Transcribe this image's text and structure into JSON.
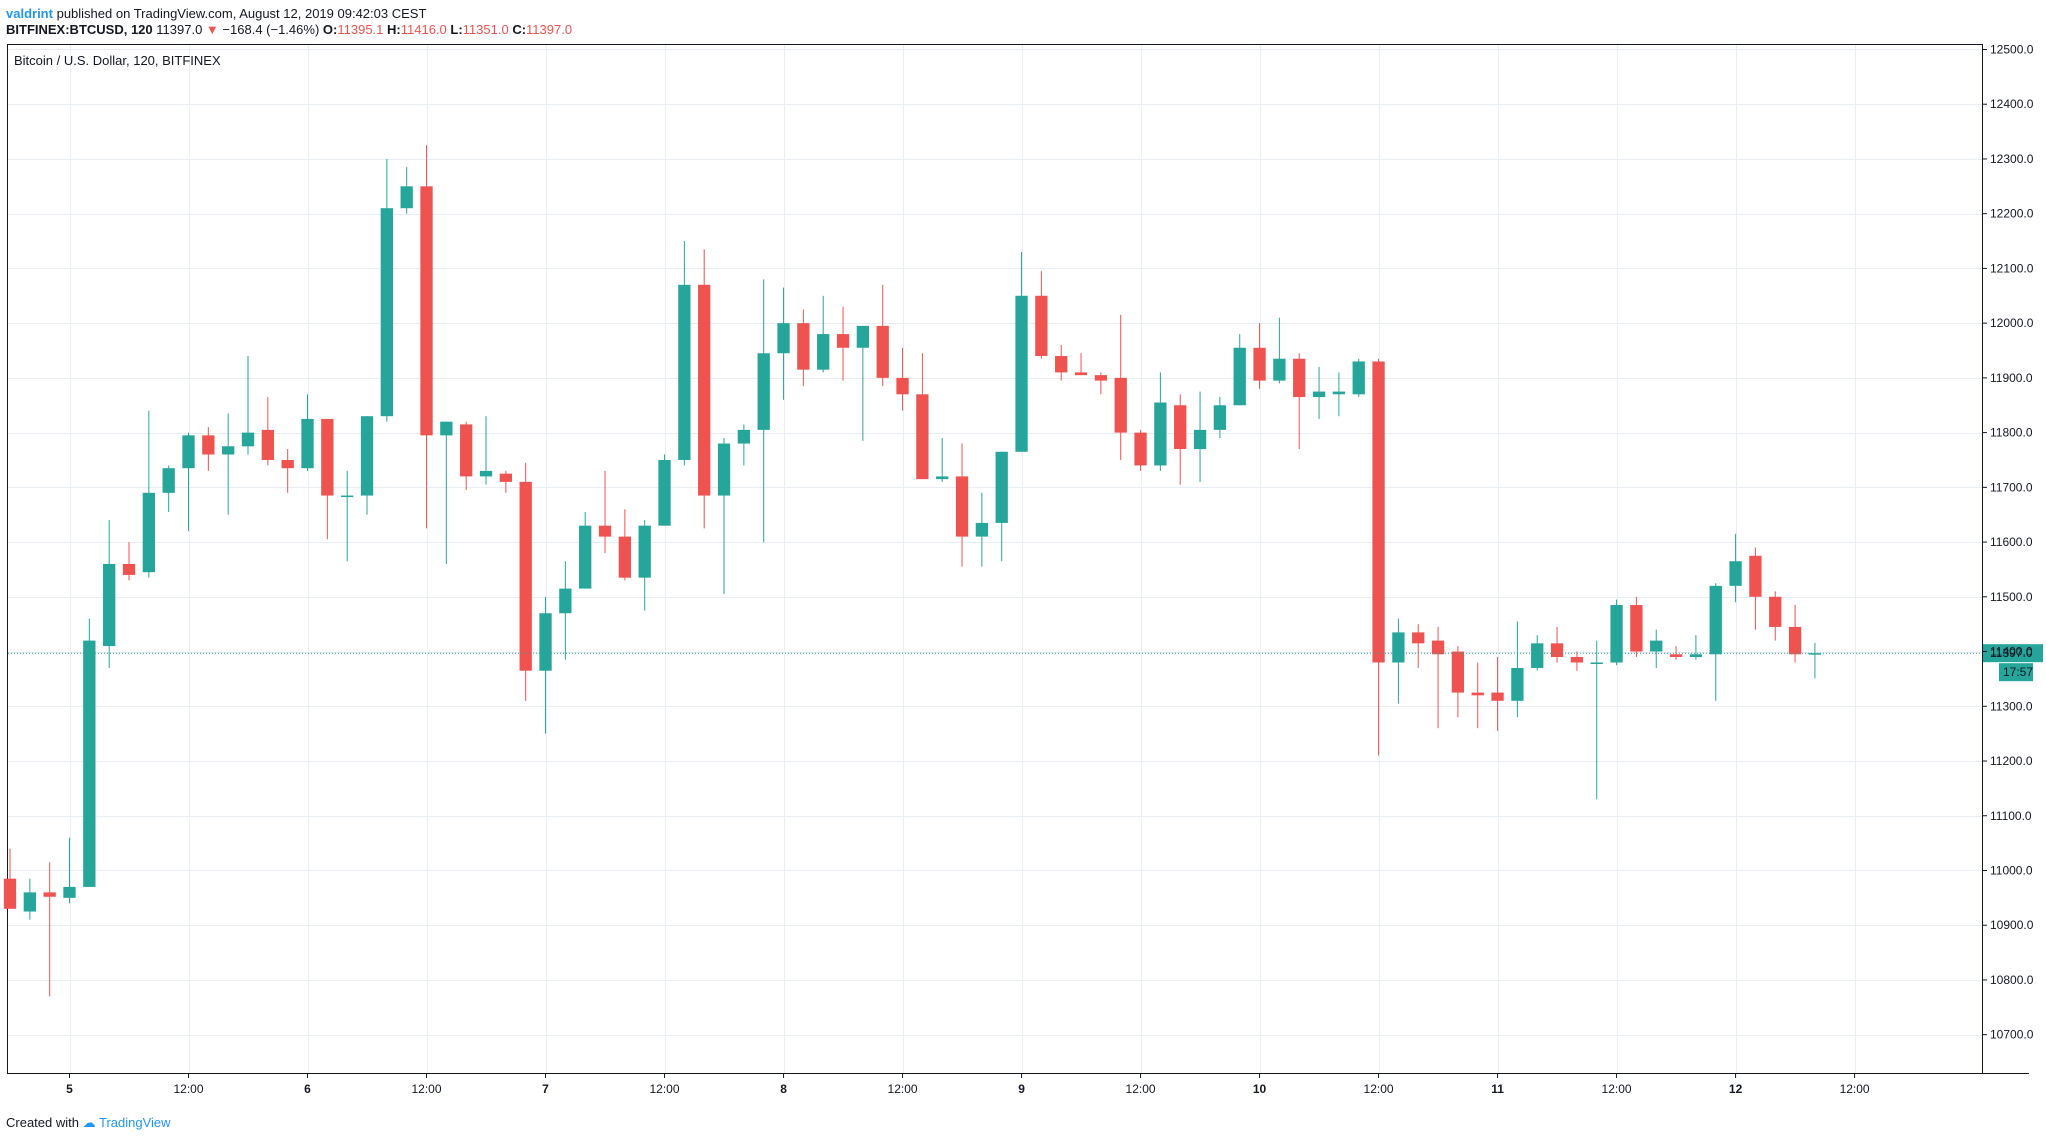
{
  "header": {
    "author": "valdrint",
    "published_text": "published on TradingView.com, August 12, 2019 09:42:03 CEST"
  },
  "symbol_bar": {
    "symbol": "BITFINEX:BTCUSD, 120",
    "last": "11397.0",
    "change": "−168.4 (−1.46%)",
    "o_label": "O:",
    "o": "11395.1",
    "h_label": "H:",
    "h": "11416.0",
    "l_label": "L:",
    "l": "11351.0",
    "c_label": "C:",
    "c": "11397.0"
  },
  "footer": {
    "created_with": "Created with",
    "brand": "TradingView"
  },
  "colors": {
    "up": "#26a69a",
    "down": "#ef5350",
    "grid": "#e8eef3",
    "axis": "#131722",
    "last_price": "#26a69a"
  },
  "chart_data": {
    "type": "candlestick",
    "title": "Bitcoin / U.S. Dollar, 120, BITFINEX",
    "ylim": [
      10630,
      12510
    ],
    "y_ticks": [
      10700,
      10800,
      10900,
      11000,
      11100,
      11200,
      11300,
      11400,
      11500,
      11600,
      11700,
      11800,
      11900,
      12000,
      12100,
      12200,
      12300,
      12400,
      12500
    ],
    "y_tick_labels": [
      "10700.0",
      "10800.0",
      "10900.0",
      "11000.0",
      "11100.0",
      "11200.0",
      "11300.0",
      "11400.0",
      "11500.0",
      "11600.0",
      "11700.0",
      "11800.0",
      "11900.0",
      "12000.0",
      "12100.0",
      "12200.0",
      "12300.0",
      "12400.0",
      "12500.0"
    ],
    "x_ticks": [
      {
        "index": 3,
        "label": "5",
        "bold": true
      },
      {
        "index": 9,
        "label": "12:00",
        "bold": false
      },
      {
        "index": 15,
        "label": "6",
        "bold": true
      },
      {
        "index": 21,
        "label": "12:00",
        "bold": false
      },
      {
        "index": 27,
        "label": "7",
        "bold": true
      },
      {
        "index": 33,
        "label": "12:00",
        "bold": false
      },
      {
        "index": 39,
        "label": "8",
        "bold": true
      },
      {
        "index": 45,
        "label": "12:00",
        "bold": false
      },
      {
        "index": 51,
        "label": "9",
        "bold": true
      },
      {
        "index": 57,
        "label": "12:00",
        "bold": false
      },
      {
        "index": 63,
        "label": "10",
        "bold": true
      },
      {
        "index": 69,
        "label": "12:00",
        "bold": false
      },
      {
        "index": 75,
        "label": "11",
        "bold": true
      },
      {
        "index": 81,
        "label": "12:00",
        "bold": false
      },
      {
        "index": 87,
        "label": "12",
        "bold": true
      },
      {
        "index": 93,
        "label": "12:00",
        "bold": false
      }
    ],
    "x_count": 97,
    "last_price": {
      "value": 11397.0,
      "label": "11397.0",
      "countdown": "17:57"
    },
    "candles": [
      {
        "o": 10985,
        "h": 11040,
        "l": 10930,
        "c": 10930
      },
      {
        "o": 10925,
        "h": 10985,
        "l": 10910,
        "c": 10960
      },
      {
        "o": 10960,
        "h": 11015,
        "l": 10770,
        "c": 10952
      },
      {
        "o": 10950,
        "h": 11060,
        "l": 10940,
        "c": 10970
      },
      {
        "o": 10970,
        "h": 11460,
        "l": 10970,
        "c": 11420
      },
      {
        "o": 11410,
        "h": 11640,
        "l": 11370,
        "c": 11560
      },
      {
        "o": 11560,
        "h": 11600,
        "l": 11530,
        "c": 11540
      },
      {
        "o": 11545,
        "h": 11840,
        "l": 11535,
        "c": 11690
      },
      {
        "o": 11690,
        "h": 11740,
        "l": 11655,
        "c": 11735
      },
      {
        "o": 11735,
        "h": 11800,
        "l": 11620,
        "c": 11795
      },
      {
        "o": 11795,
        "h": 11810,
        "l": 11730,
        "c": 11760
      },
      {
        "o": 11760,
        "h": 11835,
        "l": 11650,
        "c": 11775
      },
      {
        "o": 11775,
        "h": 11940,
        "l": 11760,
        "c": 11800
      },
      {
        "o": 11805,
        "h": 11865,
        "l": 11740,
        "c": 11750
      },
      {
        "o": 11750,
        "h": 11770,
        "l": 11690,
        "c": 11735
      },
      {
        "o": 11735,
        "h": 11870,
        "l": 11730,
        "c": 11825
      },
      {
        "o": 11825,
        "h": 11825,
        "l": 11605,
        "c": 11685
      },
      {
        "o": 11685,
        "h": 11730,
        "l": 11565,
        "c": 11685
      },
      {
        "o": 11685,
        "h": 11830,
        "l": 11650,
        "c": 11830
      },
      {
        "o": 11830,
        "h": 12300,
        "l": 11820,
        "c": 12210
      },
      {
        "o": 12210,
        "h": 12285,
        "l": 12200,
        "c": 12250
      },
      {
        "o": 12250,
        "h": 12325,
        "l": 11625,
        "c": 11795
      },
      {
        "o": 11795,
        "h": 11820,
        "l": 11560,
        "c": 11820
      },
      {
        "o": 11815,
        "h": 11820,
        "l": 11695,
        "c": 11720
      },
      {
        "o": 11720,
        "h": 11830,
        "l": 11705,
        "c": 11730
      },
      {
        "o": 11725,
        "h": 11730,
        "l": 11690,
        "c": 11710
      },
      {
        "o": 11710,
        "h": 11745,
        "l": 11310,
        "c": 11365
      },
      {
        "o": 11365,
        "h": 11500,
        "l": 11250,
        "c": 11470
      },
      {
        "o": 11470,
        "h": 11565,
        "l": 11385,
        "c": 11515
      },
      {
        "o": 11515,
        "h": 11655,
        "l": 11515,
        "c": 11630
      },
      {
        "o": 11630,
        "h": 11730,
        "l": 11580,
        "c": 11610
      },
      {
        "o": 11610,
        "h": 11660,
        "l": 11530,
        "c": 11535
      },
      {
        "o": 11535,
        "h": 11640,
        "l": 11475,
        "c": 11630
      },
      {
        "o": 11630,
        "h": 11760,
        "l": 11630,
        "c": 11750
      },
      {
        "o": 11750,
        "h": 12150,
        "l": 11740,
        "c": 12070
      },
      {
        "o": 12070,
        "h": 12135,
        "l": 11625,
        "c": 11685
      },
      {
        "o": 11685,
        "h": 11790,
        "l": 11505,
        "c": 11780
      },
      {
        "o": 11780,
        "h": 11815,
        "l": 11740,
        "c": 11805
      },
      {
        "o": 11805,
        "h": 12080,
        "l": 11600,
        "c": 11945
      },
      {
        "o": 11945,
        "h": 12065,
        "l": 11860,
        "c": 12000
      },
      {
        "o": 12000,
        "h": 12025,
        "l": 11885,
        "c": 11915
      },
      {
        "o": 11915,
        "h": 12050,
        "l": 11910,
        "c": 11980
      },
      {
        "o": 11980,
        "h": 12030,
        "l": 11895,
        "c": 11955
      },
      {
        "o": 11955,
        "h": 11995,
        "l": 11785,
        "c": 11995
      },
      {
        "o": 11995,
        "h": 12070,
        "l": 11885,
        "c": 11900
      },
      {
        "o": 11900,
        "h": 11955,
        "l": 11840,
        "c": 11870
      },
      {
        "o": 11870,
        "h": 11945,
        "l": 11715,
        "c": 11715
      },
      {
        "o": 11715,
        "h": 11790,
        "l": 11710,
        "c": 11720
      },
      {
        "o": 11720,
        "h": 11780,
        "l": 11555,
        "c": 11610
      },
      {
        "o": 11610,
        "h": 11690,
        "l": 11555,
        "c": 11635
      },
      {
        "o": 11635,
        "h": 11765,
        "l": 11565,
        "c": 11765
      },
      {
        "o": 11765,
        "h": 12130,
        "l": 11765,
        "c": 12050
      },
      {
        "o": 12050,
        "h": 12095,
        "l": 11935,
        "c": 11940
      },
      {
        "o": 11940,
        "h": 11960,
        "l": 11895,
        "c": 11910
      },
      {
        "o": 11910,
        "h": 11945,
        "l": 11905,
        "c": 11905
      },
      {
        "o": 11905,
        "h": 11910,
        "l": 11870,
        "c": 11895
      },
      {
        "o": 11900,
        "h": 12015,
        "l": 11750,
        "c": 11800
      },
      {
        "o": 11800,
        "h": 11805,
        "l": 11730,
        "c": 11740
      },
      {
        "o": 11740,
        "h": 11910,
        "l": 11730,
        "c": 11855
      },
      {
        "o": 11850,
        "h": 11870,
        "l": 11705,
        "c": 11770
      },
      {
        "o": 11770,
        "h": 11875,
        "l": 11710,
        "c": 11805
      },
      {
        "o": 11805,
        "h": 11865,
        "l": 11790,
        "c": 11850
      },
      {
        "o": 11850,
        "h": 11980,
        "l": 11850,
        "c": 11955
      },
      {
        "o": 11955,
        "h": 12000,
        "l": 11880,
        "c": 11895
      },
      {
        "o": 11895,
        "h": 12010,
        "l": 11890,
        "c": 11935
      },
      {
        "o": 11935,
        "h": 11945,
        "l": 11770,
        "c": 11865
      },
      {
        "o": 11865,
        "h": 11920,
        "l": 11825,
        "c": 11875
      },
      {
        "o": 11870,
        "h": 11910,
        "l": 11830,
        "c": 11875
      },
      {
        "o": 11870,
        "h": 11935,
        "l": 11865,
        "c": 11930
      },
      {
        "o": 11930,
        "h": 11935,
        "l": 11210,
        "c": 11380
      },
      {
        "o": 11380,
        "h": 11460,
        "l": 11305,
        "c": 11435
      },
      {
        "o": 11435,
        "h": 11450,
        "l": 11370,
        "c": 11415
      },
      {
        "o": 11420,
        "h": 11445,
        "l": 11260,
        "c": 11395
      },
      {
        "o": 11400,
        "h": 11410,
        "l": 11280,
        "c": 11325
      },
      {
        "o": 11325,
        "h": 11380,
        "l": 11260,
        "c": 11320
      },
      {
        "o": 11325,
        "h": 11390,
        "l": 11255,
        "c": 11310
      },
      {
        "o": 11310,
        "h": 11455,
        "l": 11280,
        "c": 11370
      },
      {
        "o": 11370,
        "h": 11430,
        "l": 11365,
        "c": 11415
      },
      {
        "o": 11415,
        "h": 11445,
        "l": 11380,
        "c": 11390
      },
      {
        "o": 11390,
        "h": 11400,
        "l": 11365,
        "c": 11380
      },
      {
        "o": 11380,
        "h": 11420,
        "l": 11130,
        "c": 11380
      },
      {
        "o": 11380,
        "h": 11495,
        "l": 11375,
        "c": 11485
      },
      {
        "o": 11485,
        "h": 11500,
        "l": 11390,
        "c": 11400
      },
      {
        "o": 11400,
        "h": 11440,
        "l": 11370,
        "c": 11420
      },
      {
        "o": 11395,
        "h": 11410,
        "l": 11385,
        "c": 11390
      },
      {
        "o": 11390,
        "h": 11430,
        "l": 11385,
        "c": 11395
      },
      {
        "o": 11395,
        "h": 11525,
        "l": 11310,
        "c": 11520
      },
      {
        "o": 11520,
        "h": 11615,
        "l": 11490,
        "c": 11565
      },
      {
        "o": 11575,
        "h": 11590,
        "l": 11440,
        "c": 11500
      },
      {
        "o": 11500,
        "h": 11510,
        "l": 11420,
        "c": 11445
      },
      {
        "o": 11445,
        "h": 11485,
        "l": 11380,
        "c": 11395
      },
      {
        "o": 11395,
        "h": 11416,
        "l": 11351,
        "c": 11397
      }
    ]
  }
}
